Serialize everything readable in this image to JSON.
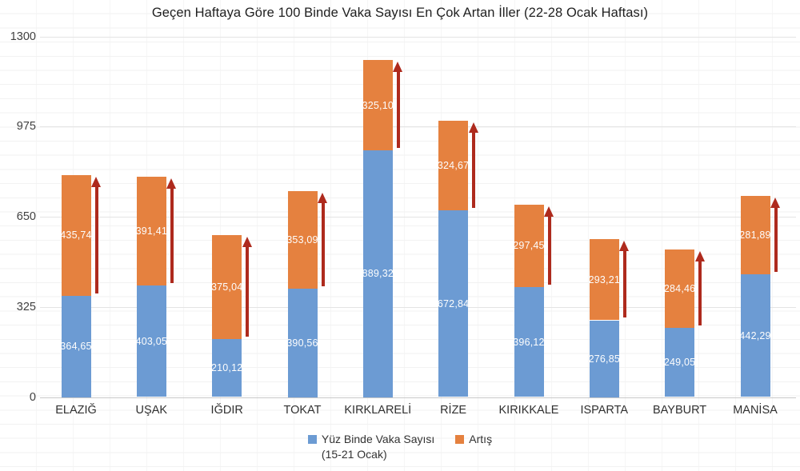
{
  "title": "Geçen Haftaya Göre 100 Binde Vaka Sayısı En Çok Artan İller (22-28 Ocak Haftası)",
  "chart_data": {
    "type": "bar",
    "stacked": true,
    "title": "Geçen Haftaya Göre 100 Binde Vaka Sayısı En Çok Artan İller (22-28 Ocak Haftası)",
    "categories": [
      "ELAZIĞ",
      "UŞAK",
      "IĞDIR",
      "TOKAT",
      "KIRKLARELİ",
      "RİZE",
      "KIRIKKALE",
      "ISPARTA",
      "BAYBURT",
      "MANİSA"
    ],
    "series": [
      {
        "name": "Yüz Binde Vaka Sayısı (15-21 Ocak)",
        "color": "#6c9bd3",
        "values": [
          364.65,
          403.05,
          210.12,
          390.56,
          889.32,
          672.84,
          396.12,
          276.85,
          249.05,
          442.29
        ],
        "labels": [
          "364,65",
          "403,05",
          "210,12",
          "390,56",
          "889,32",
          "672,84",
          "396,12",
          "276,85",
          "249,05",
          "442,29"
        ]
      },
      {
        "name": "Artış",
        "color": "#e5813f",
        "values": [
          435.74,
          391.41,
          375.04,
          353.09,
          325.1,
          324.67,
          297.45,
          293.21,
          284.46,
          281.89
        ],
        "labels": [
          "435,74",
          "391,41",
          "375,04",
          "353,09",
          "325,10",
          "324,67",
          "297,45",
          "293,21",
          "284,46",
          "281,89"
        ]
      }
    ],
    "y_ticks": [
      0,
      325,
      650,
      975,
      1300
    ],
    "y_tick_labels": [
      "0",
      "325",
      "650",
      "975",
      "1300"
    ],
    "ylim": [
      0,
      1300
    ],
    "grid": true,
    "legend_position": "bottom",
    "legend": [
      {
        "label": "Yüz Binde Vaka Sayısı",
        "label_line2": "(15-21 Ocak)",
        "color": "#6c9bd3"
      },
      {
        "label": "Artış",
        "label_line2": "",
        "color": "#e5813f"
      }
    ],
    "annotation": "dark-red upward arrow beside each bar spanning the increase segment",
    "arrow_color": "#ae2a1d",
    "value_label_color": "#fdfdfd"
  }
}
